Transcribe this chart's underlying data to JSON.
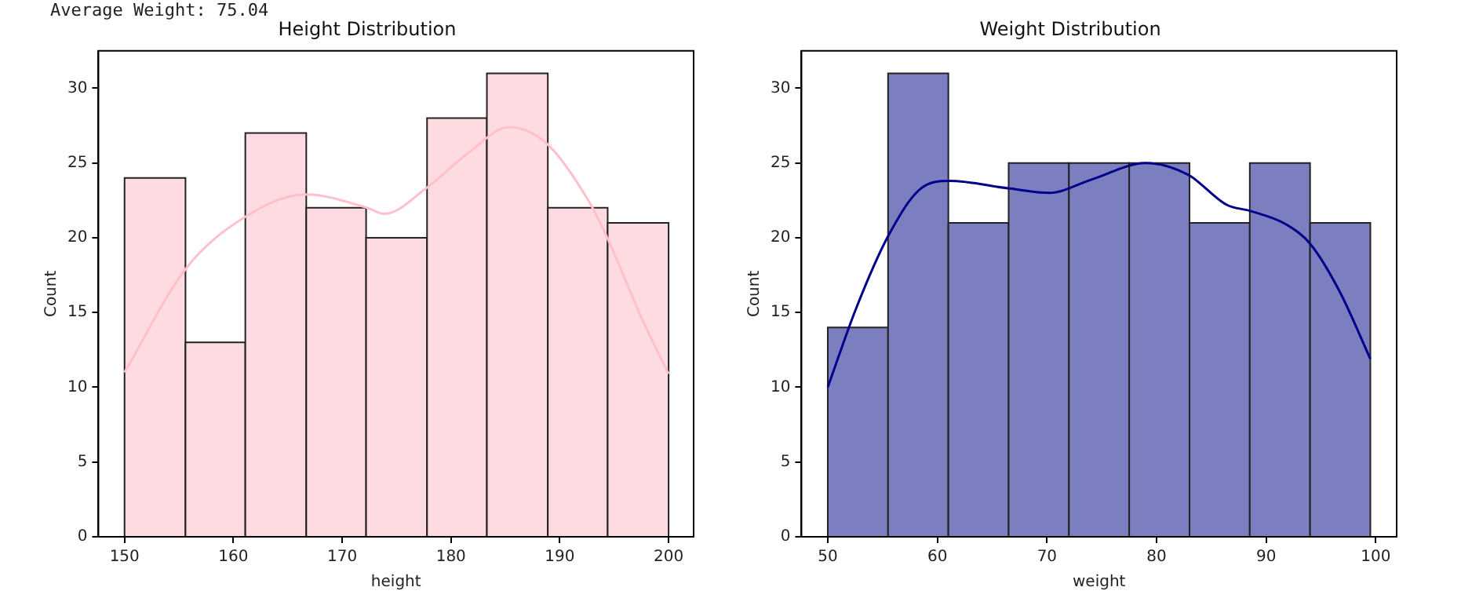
{
  "chart_data": [
    {
      "type": "histogram",
      "title": "Height Distribution",
      "xlabel": "height",
      "ylabel": "Count",
      "annotations": [
        "Average Weight: 75.04"
      ],
      "bins": [
        150,
        155.6,
        161.1,
        166.7,
        172.2,
        177.8,
        183.3,
        188.9,
        194.4,
        200
      ],
      "values": [
        24,
        13,
        27,
        22,
        20,
        28,
        31,
        22,
        21
      ],
      "color": "#fddbe1",
      "xlim": [
        147.6,
        202.3
      ],
      "xticks": [
        150,
        160,
        170,
        180,
        190,
        200
      ],
      "ylim": [
        0,
        32.5
      ],
      "yticks": [
        0,
        5,
        10,
        15,
        20,
        25,
        30
      ],
      "grid": false,
      "legend": false,
      "series": [
        {
          "type": "line",
          "color": "#ffc0cb",
          "x": [
            150,
            155.6,
            161.1,
            166.7,
            172.3,
            173.9,
            177.7,
            181.8,
            185.3,
            188.8,
            192.7,
            194.3,
            197.6,
            200
          ],
          "values": [
            11,
            17.9,
            21.4,
            22.9,
            22,
            21.6,
            23.3,
            25.8,
            27.4,
            26.3,
            22.4,
            20.1,
            14.5,
            10.9
          ]
        }
      ]
    },
    {
      "type": "histogram",
      "title": "Weight Distribution",
      "xlabel": "weight",
      "ylabel": "Count",
      "bins": [
        50,
        55.5,
        61,
        66.5,
        72,
        77.5,
        83,
        88.5,
        94,
        99.5
      ],
      "values": [
        14,
        31,
        21,
        25,
        25,
        25,
        21,
        25,
        21
      ],
      "color": "#7b7fbf",
      "xlim": [
        47.6,
        101.9
      ],
      "xticks": [
        50,
        60,
        70,
        80,
        90,
        100
      ],
      "ylim": [
        0,
        32.5
      ],
      "yticks": [
        0,
        5,
        10,
        15,
        20,
        25,
        30
      ],
      "grid": false,
      "legend": false,
      "series": [
        {
          "type": "line",
          "color": "#00008b",
          "x": [
            50,
            52.6,
            55.5,
            58.5,
            61.1,
            66.5,
            70.2,
            74.1,
            79,
            82.9,
            86.4,
            88.5,
            91.8,
            94,
            96.7,
            99.5
          ],
          "values": [
            10,
            15.3,
            20.1,
            23.3,
            23.8,
            23.3,
            23,
            23.9,
            25,
            24.2,
            22.2,
            21.8,
            20.9,
            19.6,
            16.4,
            11.9
          ]
        }
      ]
    }
  ]
}
